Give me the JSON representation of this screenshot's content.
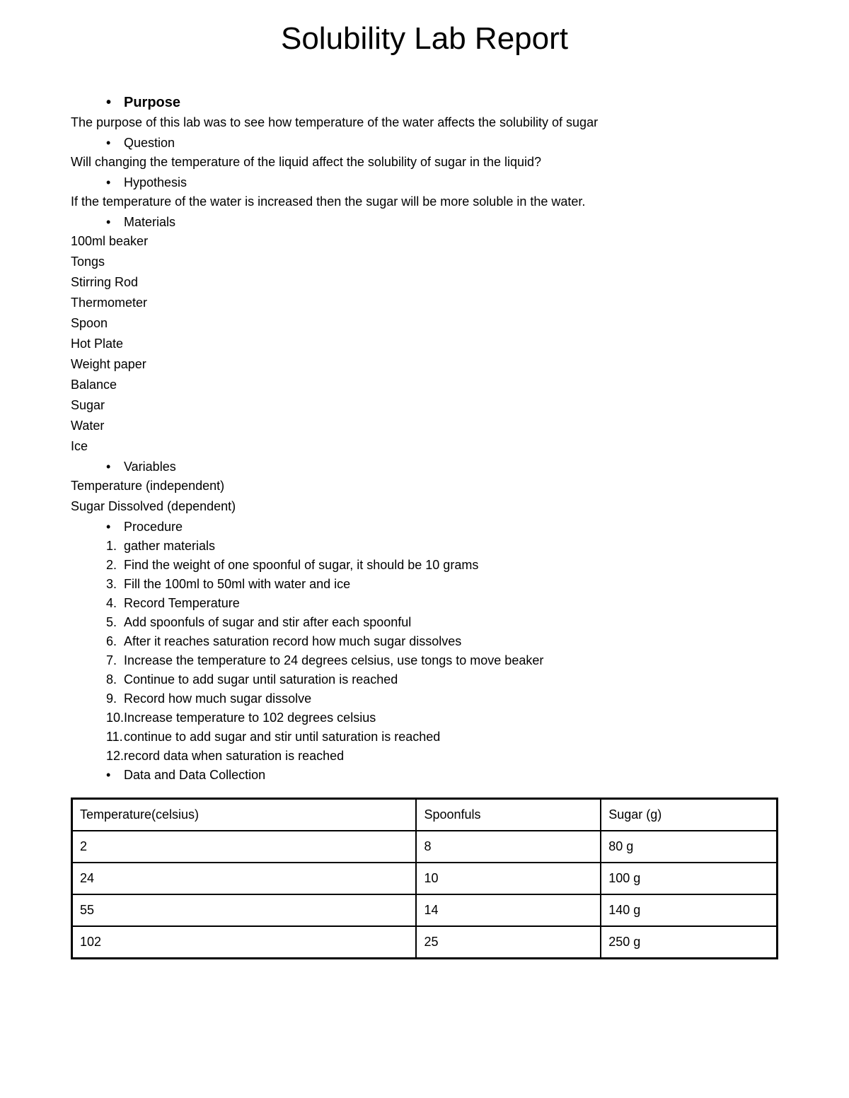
{
  "title": "Solubility Lab Report",
  "sections": {
    "purpose": {
      "heading": "Purpose",
      "text": "The purpose of this lab was to see how temperature of the water affects the solubility of sugar"
    },
    "question": {
      "heading": "Question",
      "text": "Will changing the temperature of the liquid affect the solubility of sugar in the liquid?"
    },
    "hypothesis": {
      "heading": "Hypothesis",
      "text": "If the temperature of the water is increased then the sugar will be more soluble in the water."
    },
    "materials": {
      "heading": "Materials",
      "items": [
        "100ml beaker",
        "Tongs",
        "Stirring Rod",
        "Thermometer",
        "Spoon",
        "Hot Plate",
        "Weight paper",
        "Balance",
        "Sugar",
        "Water",
        "Ice"
      ]
    },
    "variables": {
      "heading": "Variables",
      "items": [
        "Temperature (independent)",
        "Sugar Dissolved (dependent)"
      ]
    },
    "procedure": {
      "heading": "Procedure",
      "steps": [
        "gather materials",
        "Find the weight of one spoonful of sugar, it should be 10 grams",
        "Fill the 100ml to 50ml with water and ice",
        "Record Temperature",
        "Add spoonfuls of sugar and stir after each spoonful",
        "After it reaches saturation record how much sugar dissolves",
        "Increase the temperature to 24 degrees celsius, use tongs to move beaker",
        "Continue to add sugar until saturation is reached",
        "Record how much sugar dissolve",
        "Increase temperature to 102 degrees celsius",
        "continue to add sugar and stir until saturation is reached",
        "record data when saturation is reached"
      ]
    },
    "data": {
      "heading": "Data and Data Collection"
    }
  },
  "table": {
    "type": "table",
    "border_color": "#000000",
    "outer_border_width": 3,
    "inner_border_width": 2,
    "cell_padding": "8px 10px",
    "font_size": 18,
    "columns": [
      "Temperature(celsius)",
      "Spoonfuls",
      "Sugar (g)"
    ],
    "column_widths": [
      "33.3%",
      "33.3%",
      "33.3%"
    ],
    "rows": [
      [
        "2",
        "8",
        "80 g"
      ],
      [
        "24",
        "10",
        "100 g"
      ],
      [
        "55",
        "14",
        "140 g"
      ],
      [
        "102",
        "25",
        "250 g"
      ]
    ]
  },
  "typography": {
    "title_fontsize": 44,
    "heading_fontsize": 20,
    "body_fontsize": 18,
    "font_family": "Arial",
    "text_color": "#000000",
    "background_color": "#ffffff"
  }
}
